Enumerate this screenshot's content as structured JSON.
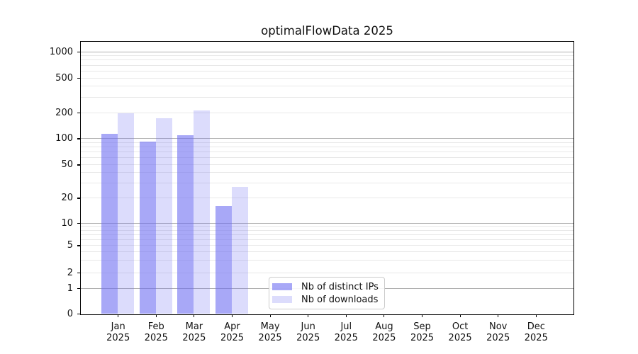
{
  "title": "optimalFlowData 2025",
  "legend": {
    "items": [
      {
        "label": "Nb of distinct IPs"
      },
      {
        "label": "Nb of downloads"
      }
    ]
  },
  "colors": {
    "bar_base": "#6e6ef2",
    "distinct_ips_fill": "rgba(110,110,242,0.6)",
    "distinct_ips_solid": "#a7a7f0",
    "downloads_fill": "rgba(110,110,242,0.24)",
    "downloads_solid": "#dbdbf8",
    "grid_major": "#b0b0b0",
    "grid_minor": "#e8e8e8",
    "axis": "#000000",
    "text": "#111111"
  },
  "chart_data": {
    "type": "bar",
    "title": "optimalFlowData 2025",
    "categories": [
      "Jan 2025",
      "Feb 2025",
      "Mar 2025",
      "Apr 2025",
      "May 2025",
      "Jun 2025",
      "Jul 2025",
      "Aug 2025",
      "Sep 2025",
      "Oct 2025",
      "Nov 2025",
      "Dec 2025"
    ],
    "series": [
      {
        "name": "Nb of distinct IPs",
        "values": [
          113,
          92,
          108,
          16,
          0,
          0,
          0,
          0,
          0,
          0,
          0,
          0
        ]
      },
      {
        "name": "Nb of downloads",
        "values": [
          195,
          172,
          210,
          27,
          0,
          0,
          0,
          0,
          0,
          0,
          0,
          0
        ]
      }
    ],
    "xlabel": "",
    "ylabel": "",
    "yscale": "symlog",
    "y_ticks": [
      0,
      1,
      2,
      5,
      10,
      20,
      50,
      100,
      200,
      500,
      1000
    ],
    "ylim": [
      0,
      1300
    ],
    "grid": "horizontal major and minor log gridlines",
    "legend_position": "lower center"
  }
}
